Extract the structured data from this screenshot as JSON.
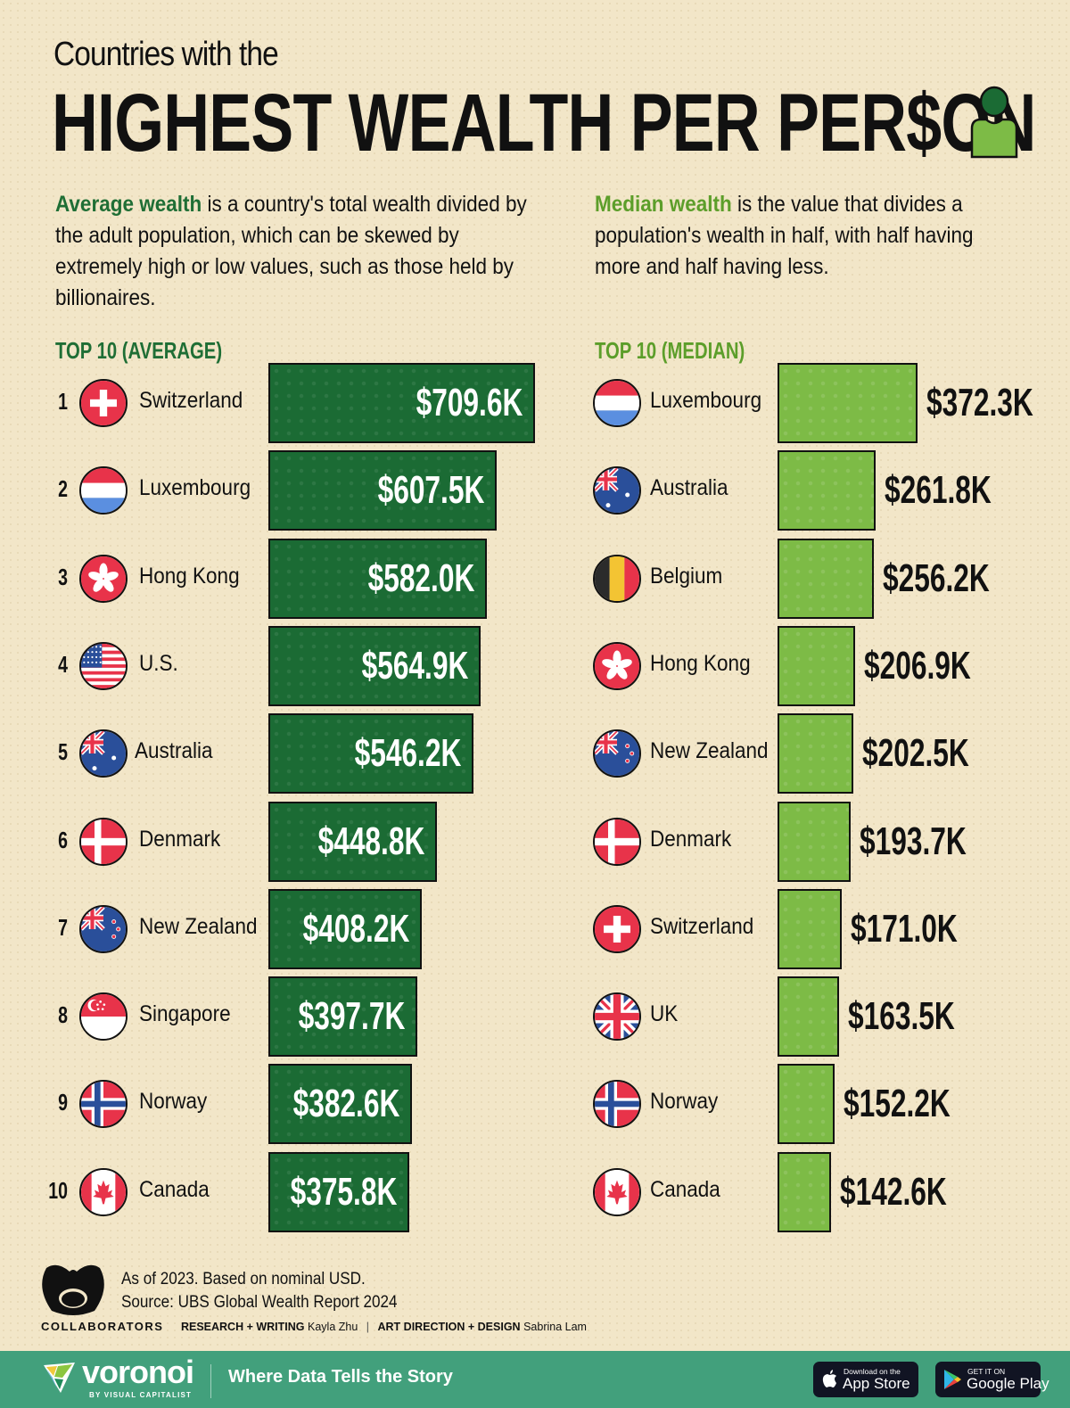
{
  "header": {
    "subtitle": "Countries with the",
    "title": "HIGHEST WEALTH PER PER$ON"
  },
  "descriptions": {
    "average": {
      "term": "Average wealth",
      "text": " is a country's total wealth divided by the adult population, which can be skewed by extremely high or low values, such as those held by billionaires."
    },
    "median": {
      "term": "Median wealth",
      "text": " is the value that divides a population's wealth in half, with half having more and half having less."
    }
  },
  "sections": {
    "average_label": "TOP 10 (AVERAGE)",
    "median_label": "TOP 10 (MEDIAN)"
  },
  "colors": {
    "background": "#f2e6c8",
    "average_bar": "#1b6b34",
    "median_bar": "#7dbb46",
    "average_heading": "#1f6e35",
    "median_heading": "#5c9e2a",
    "footer": "#42a07c"
  },
  "chart_data": [
    {
      "type": "bar",
      "orientation": "horizontal",
      "title": "Top 10 (Average)",
      "categories": [
        "Switzerland",
        "Luxembourg",
        "Hong Kong",
        "U.S.",
        "Australia",
        "Denmark",
        "New Zealand",
        "Singapore",
        "Norway",
        "Canada"
      ],
      "ranks": [
        "1",
        "2",
        "3",
        "4",
        "5",
        "6",
        "7",
        "8",
        "9",
        "10"
      ],
      "values": [
        709.6,
        607.5,
        582.0,
        564.9,
        546.2,
        448.8,
        408.2,
        397.7,
        382.6,
        375.8
      ],
      "labels": [
        "$709.6K",
        "$607.5K",
        "$582.0K",
        "$564.9K",
        "$546.2K",
        "$448.8K",
        "$408.2K",
        "$397.7K",
        "$382.6K",
        "$375.8K"
      ],
      "unit": "USD thousands",
      "flags": [
        "ch",
        "lu",
        "hk",
        "us",
        "au",
        "dk",
        "nz",
        "sg",
        "no",
        "ca"
      ]
    },
    {
      "type": "bar",
      "orientation": "horizontal",
      "title": "Top 10 (Median)",
      "categories": [
        "Luxembourg",
        "Australia",
        "Belgium",
        "Hong Kong",
        "New Zealand",
        "Denmark",
        "Switzerland",
        "UK",
        "Norway",
        "Canada"
      ],
      "values": [
        372.3,
        261.8,
        256.2,
        206.9,
        202.5,
        193.7,
        171.0,
        163.5,
        152.2,
        142.6
      ],
      "labels": [
        "$372.3K",
        "$261.8K",
        "$256.2K",
        "$206.9K",
        "$202.5K",
        "$193.7K",
        "$171.0K",
        "$163.5K",
        "$152.2K",
        "$142.6K"
      ],
      "unit": "USD thousands",
      "flags": [
        "lu",
        "au",
        "be",
        "hk",
        "nz",
        "dk",
        "ch",
        "uk",
        "no",
        "ca"
      ]
    }
  ],
  "notes": {
    "line1": "As of 2023. Based on nominal USD.",
    "line2": "Source: UBS Global Wealth Report 2024"
  },
  "credits": {
    "collaborators": "COLLABORATORS",
    "role1": "RESEARCH + WRITING",
    "name1": "Kayla Zhu",
    "separator": "|",
    "role2": "ART DIRECTION + DESIGN",
    "name2": "Sabrina Lam"
  },
  "footer": {
    "brand": "voronoi",
    "brand_sub": "BY VISUAL CAPITALIST",
    "tagline": "Where Data Tells the Story",
    "app_store_small": "Download on the",
    "app_store_big": "App Store",
    "google_small": "GET IT ON",
    "google_big": "Google Play"
  }
}
